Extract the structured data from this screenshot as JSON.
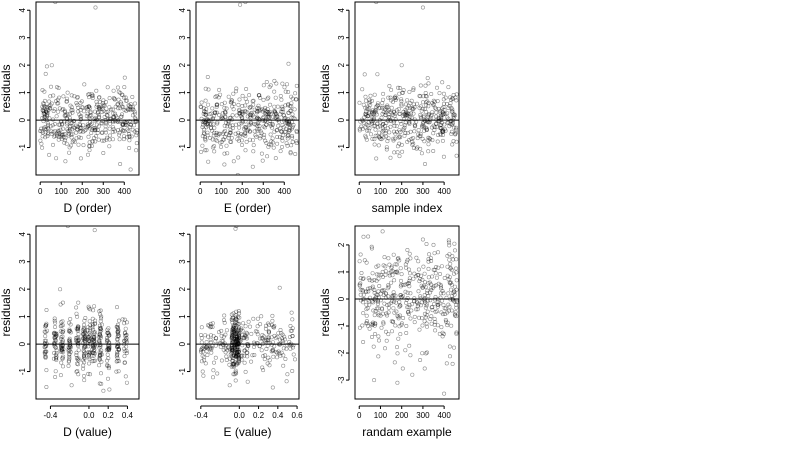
{
  "chart_data": [
    {
      "type": "scatter",
      "xlabel": "D (order)",
      "ylabel": "residuals",
      "xlim": [
        -20,
        470
      ],
      "ylim": [
        -2,
        4.3
      ],
      "xticks": [
        0,
        100,
        200,
        300,
        400
      ],
      "xtick_labels": [
        "0",
        "100",
        "200",
        "300",
        "400"
      ],
      "yticks": [
        -1,
        0,
        1,
        2,
        3,
        4
      ],
      "ytick_labels": [
        "-1",
        "0",
        "1",
        "2",
        "3",
        "4"
      ],
      "hline": 0,
      "points": [
        [
          72,
          4.3
        ],
        [
          263,
          4.1
        ],
        [
          55,
          2.0
        ],
        [
          80,
          1.2
        ],
        [
          210,
          1.3
        ],
        [
          400,
          1.2
        ],
        [
          120,
          -1.5
        ],
        [
          380,
          -1.6
        ],
        [
          430,
          -1.8
        ],
        [
          150,
          0.9
        ],
        [
          300,
          -1.2
        ],
        [
          20,
          0.5
        ],
        [
          350,
          0.8
        ],
        [
          100,
          -0.6
        ],
        [
          240,
          0.3
        ]
      ],
      "noise": {
        "n": 440,
        "x": [
          0,
          460
        ],
        "sd": 0.55,
        "seed": 11
      }
    },
    {
      "type": "scatter",
      "xlabel": "E (order)",
      "ylabel": "residuals",
      "xlim": [
        -20,
        470
      ],
      "ylim": [
        -2,
        4.3
      ],
      "xticks": [
        0,
        100,
        200,
        300,
        400
      ],
      "xtick_labels": [
        "0",
        "100",
        "200",
        "300",
        "400"
      ],
      "yticks": [
        -1,
        0,
        1,
        2,
        3,
        4
      ],
      "ytick_labels": [
        "-1",
        "0",
        "1",
        "2",
        "3",
        "4"
      ],
      "hline": 0,
      "points": [
        [
          190,
          4.2
        ],
        [
          215,
          4.3
        ],
        [
          420,
          2.05
        ],
        [
          160,
          -1.5
        ],
        [
          250,
          -1.7
        ],
        [
          90,
          1.1
        ],
        [
          330,
          1.2
        ],
        [
          30,
          -1.1
        ],
        [
          280,
          0.9
        ],
        [
          440,
          -0.8
        ]
      ],
      "noise": {
        "n": 440,
        "x": [
          0,
          460
        ],
        "sd": 0.55,
        "seed": 23
      }
    },
    {
      "type": "scatter",
      "xlabel": "sample index",
      "ylabel": "residuals",
      "xlim": [
        -20,
        470
      ],
      "ylim": [
        -2,
        4.3
      ],
      "xticks": [
        0,
        100,
        200,
        300,
        400
      ],
      "xtick_labels": [
        "0",
        "100",
        "200",
        "300",
        "400"
      ],
      "yticks": [
        -1,
        0,
        1,
        2,
        3,
        4
      ],
      "ytick_labels": [
        "-1",
        "0",
        "1",
        "2",
        "3",
        "4"
      ],
      "hline": 0,
      "points": [
        [
          80,
          4.3
        ],
        [
          300,
          4.1
        ],
        [
          200,
          2.0
        ],
        [
          80,
          -1.4
        ],
        [
          310,
          -1.6
        ],
        [
          150,
          1.1
        ],
        [
          420,
          1.2
        ],
        [
          60,
          0.7
        ],
        [
          250,
          -0.9
        ]
      ],
      "noise": {
        "n": 440,
        "x": [
          0,
          460
        ],
        "sd": 0.55,
        "seed": 37
      }
    },
    {
      "type": "scatter",
      "xlabel": "D (value)",
      "ylabel": "residuals",
      "xlim": [
        -0.55,
        0.52
      ],
      "ylim": [
        -2,
        4.3
      ],
      "xticks": [
        -0.4,
        0.0,
        0.2,
        0.4
      ],
      "xtick_labels": [
        "-0.4",
        "0.0",
        "0.2",
        "0.4"
      ],
      "yticks": [
        -1,
        0,
        1,
        2,
        3,
        4
      ],
      "ytick_labels": [
        "-1",
        "0",
        "1",
        "2",
        "3",
        "4"
      ],
      "hline": 0,
      "points": [
        [
          -0.22,
          4.3
        ],
        [
          0.06,
          4.15
        ],
        [
          -0.3,
          2.0
        ],
        [
          0.0,
          1.3
        ],
        [
          -0.18,
          -1.5
        ],
        [
          0.15,
          -1.7
        ],
        [
          0.35,
          0.9
        ],
        [
          -0.45,
          -0.5
        ]
      ],
      "noise": {
        "n": 440,
        "x": [
          -0.5,
          0.45
        ],
        "sd": 0.55,
        "seed": 53,
        "columns": [
          -0.45,
          -0.35,
          -0.28,
          -0.2,
          -0.12,
          -0.05,
          0.0,
          0.05,
          0.12,
          0.2,
          0.3,
          0.38
        ]
      }
    },
    {
      "type": "scatter",
      "xlabel": "E (value)",
      "ylabel": "residuals",
      "xlim": [
        -0.45,
        0.62
      ],
      "ylim": [
        -2,
        4.3
      ],
      "xticks": [
        -0.4,
        0.0,
        0.2,
        0.4,
        0.6
      ],
      "xtick_labels": [
        "-0.4",
        "0.0",
        "0.2",
        "0.4",
        "0.6"
      ],
      "yticks": [
        -1,
        0,
        1,
        2,
        3,
        4
      ],
      "ytick_labels": [
        "-1",
        "0",
        "1",
        "2",
        "3",
        "4"
      ],
      "hline": 0,
      "points": [
        [
          -0.04,
          4.2
        ],
        [
          -0.03,
          4.3
        ],
        [
          0.42,
          2.05
        ],
        [
          -0.38,
          -1.0
        ],
        [
          0.5,
          -1.1
        ],
        [
          0.55,
          0.9
        ],
        [
          -0.1,
          -1.5
        ]
      ],
      "noise": {
        "n": 440,
        "x": [
          -0.4,
          0.58
        ],
        "sd": 0.5,
        "seed": 71,
        "cluster": [
          -0.08,
          0.0
        ]
      }
    },
    {
      "type": "scatter",
      "xlabel": "randam example",
      "ylabel": "residuals",
      "xlim": [
        -20,
        470
      ],
      "ylim": [
        -3.7,
        2.7
      ],
      "xticks": [
        0,
        100,
        200,
        300,
        400
      ],
      "xtick_labels": [
        "0",
        "100",
        "200",
        "300",
        "400"
      ],
      "yticks": [
        -3,
        -2,
        -1,
        0,
        1,
        2
      ],
      "ytick_labels": [
        "-3",
        "-2",
        "-1",
        "0",
        "1",
        "2"
      ],
      "hline": 0,
      "points": [
        [
          400,
          -3.5
        ],
        [
          70,
          -3.0
        ],
        [
          180,
          -3.1
        ],
        [
          110,
          2.5
        ],
        [
          20,
          2.3
        ],
        [
          300,
          2.2
        ],
        [
          440,
          -2.4
        ],
        [
          250,
          -2.8
        ],
        [
          350,
          2.0
        ]
      ],
      "noise": {
        "n": 440,
        "x": [
          0,
          460
        ],
        "sd": 1.0,
        "seed": 97
      }
    }
  ]
}
